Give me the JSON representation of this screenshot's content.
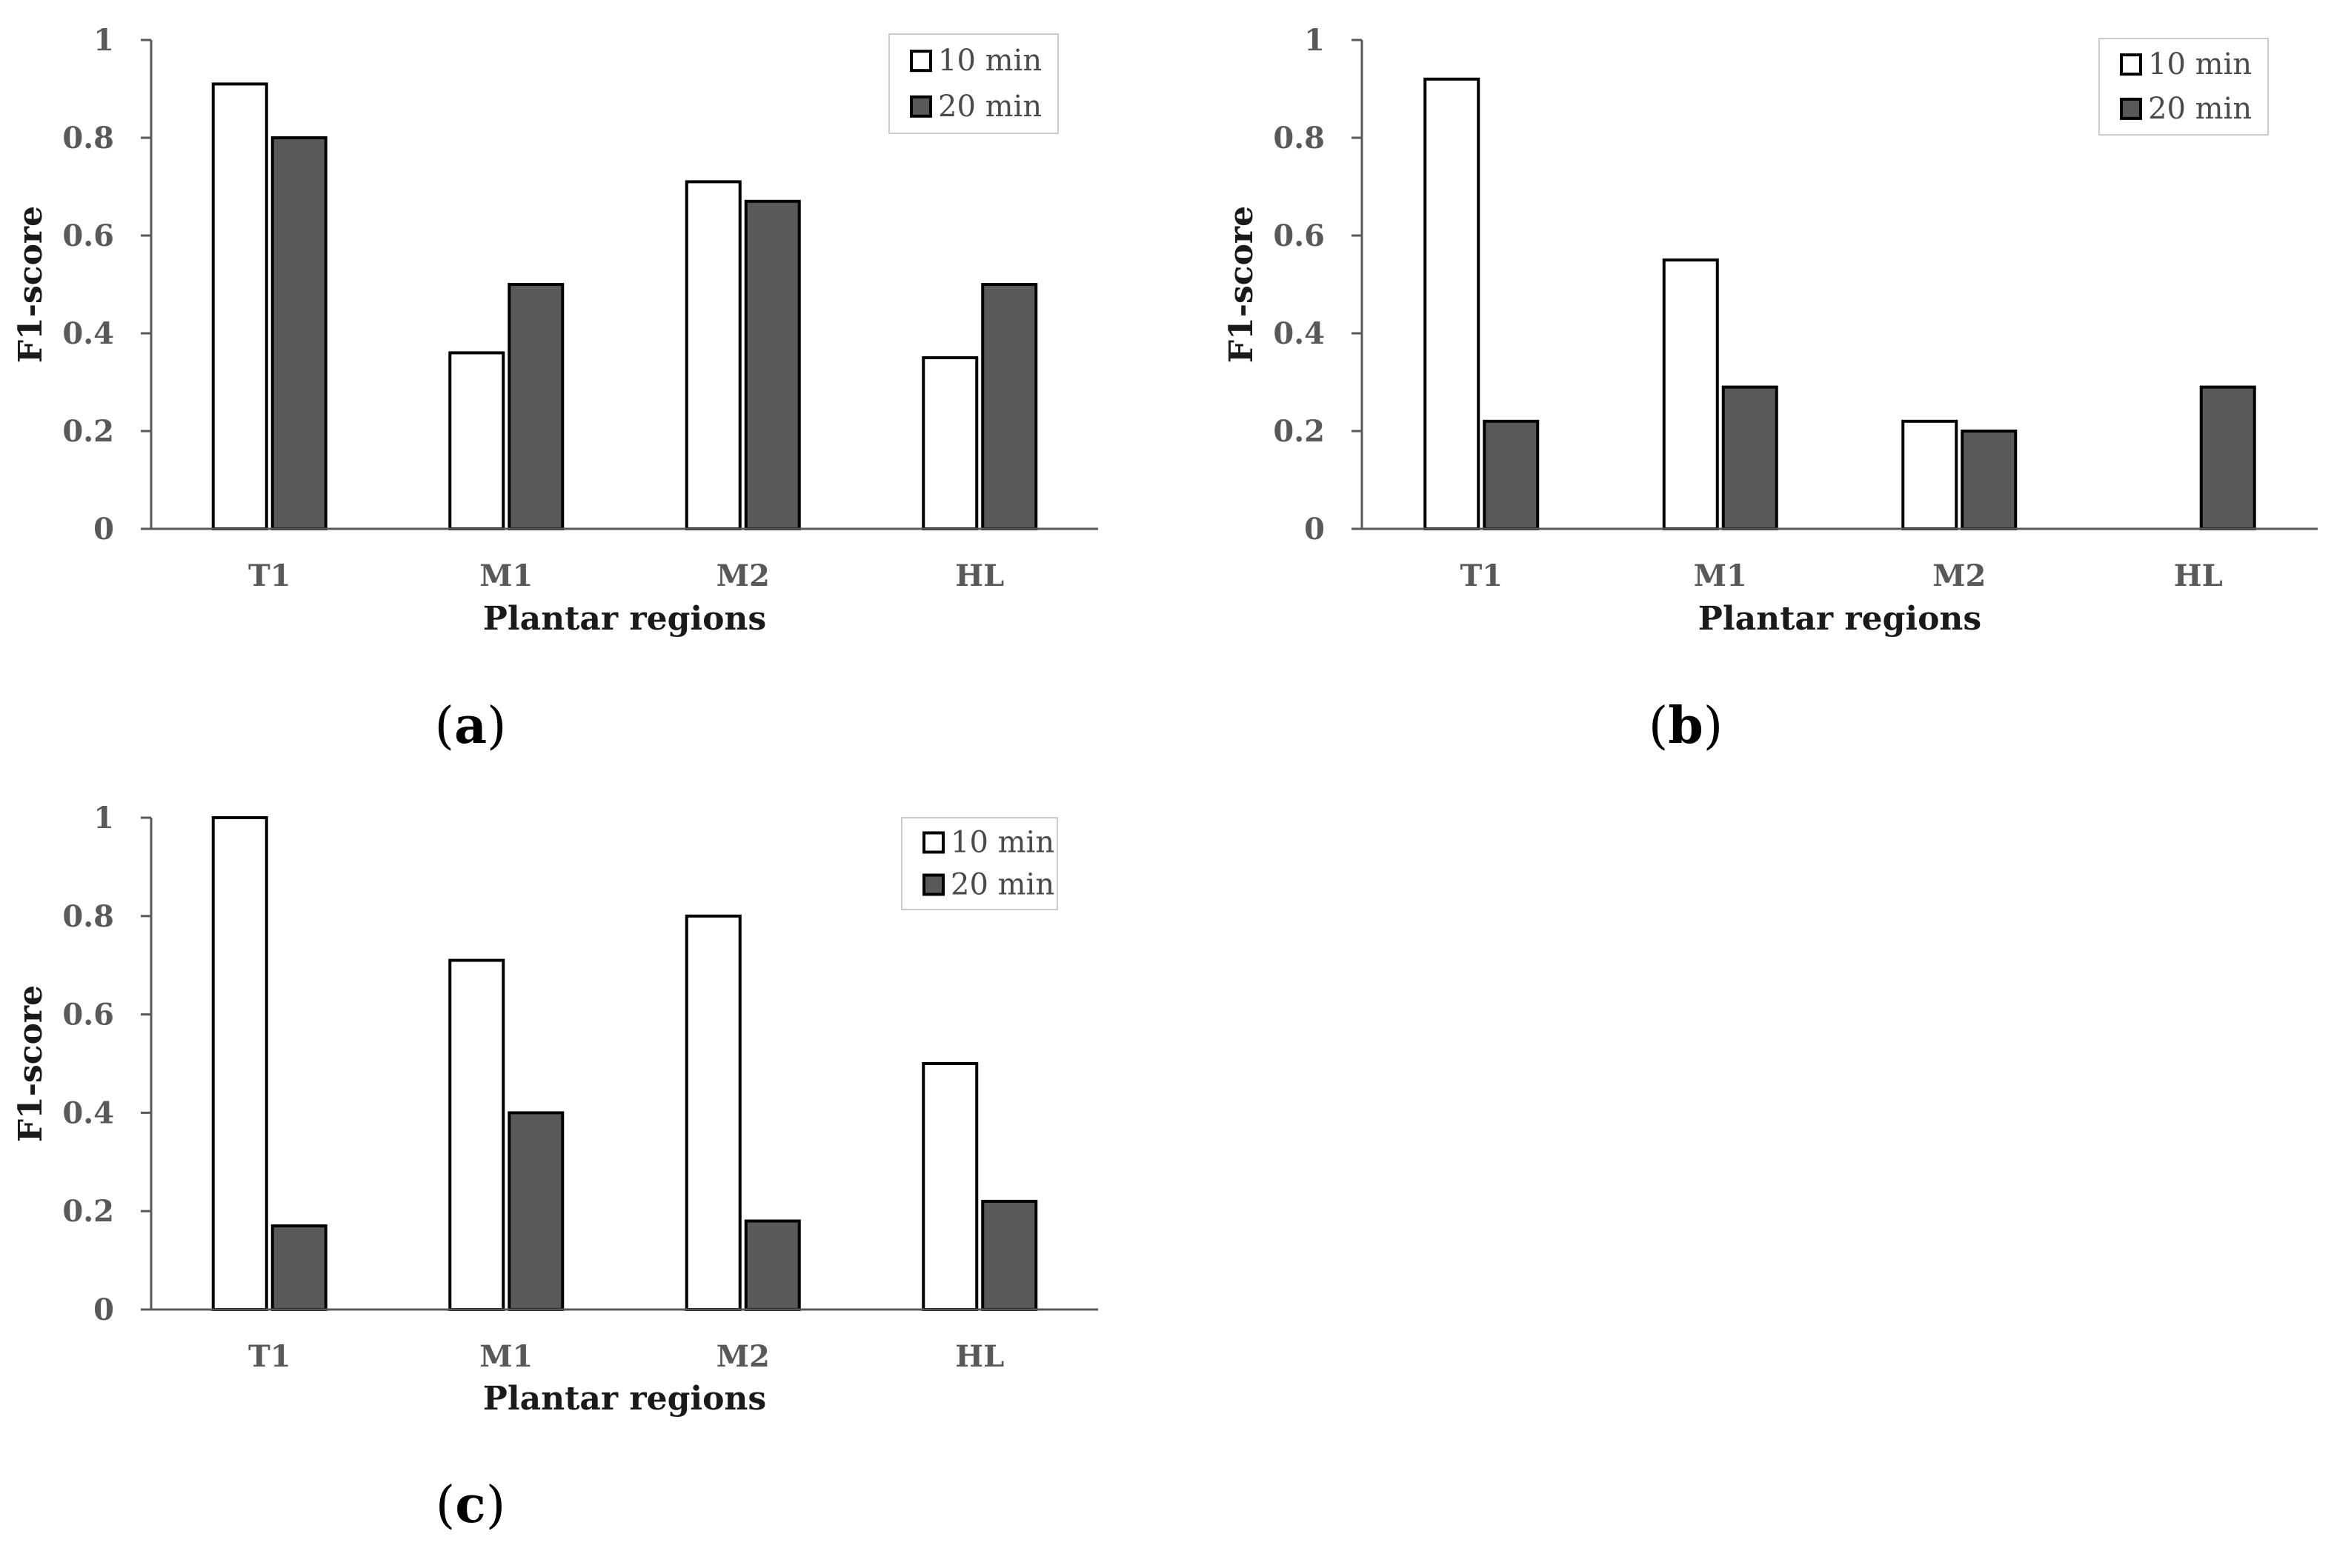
{
  "chart_data": [
    {
      "panel": "(a)",
      "panel_letter": "a",
      "type": "bar",
      "categories": [
        "T1",
        "M1",
        "M2",
        "HL"
      ],
      "series": [
        {
          "name": "10 min",
          "values": [
            0.91,
            0.36,
            0.71,
            0.35
          ],
          "fill": "#ffffff"
        },
        {
          "name": "20 min",
          "values": [
            0.8,
            0.5,
            0.67,
            0.5
          ],
          "fill": "#595959"
        }
      ],
      "xlabel": "Plantar regions",
      "ylabel": "F1-score",
      "ylim": [
        0,
        1
      ],
      "yticks": [
        "0",
        "0.2",
        "0.4",
        "0.6",
        "0.8",
        "1"
      ],
      "legend": "top-right",
      "grid": false
    },
    {
      "panel": "(b)",
      "panel_letter": "b",
      "type": "bar",
      "categories": [
        "T1",
        "M1",
        "M2",
        "HL"
      ],
      "series": [
        {
          "name": "10 min",
          "values": [
            0.92,
            0.55,
            0.22,
            0
          ],
          "fill": "#ffffff"
        },
        {
          "name": "20 min",
          "values": [
            0.22,
            0.29,
            0.2,
            0.29
          ],
          "fill": "#595959"
        }
      ],
      "xlabel": "Plantar regions",
      "ylabel": "F1-score",
      "ylim": [
        0,
        1
      ],
      "yticks": [
        "0",
        "0.2",
        "0.4",
        "0.6",
        "0.8",
        "1"
      ],
      "legend": "top-right",
      "grid": false
    },
    {
      "panel": "(c)",
      "panel_letter": "c",
      "type": "bar",
      "categories": [
        "T1",
        "M1",
        "M2",
        "HL"
      ],
      "series": [
        {
          "name": "10 min",
          "values": [
            1.0,
            0.71,
            0.8,
            0.5
          ],
          "fill": "#ffffff"
        },
        {
          "name": "20 min",
          "values": [
            0.17,
            0.4,
            0.18,
            0.22
          ],
          "fill": "#595959"
        }
      ],
      "xlabel": "Plantar regions",
      "ylabel": "F1-score",
      "ylim": [
        0,
        1
      ],
      "yticks": [
        "0",
        "0.2",
        "0.4",
        "0.6",
        "0.8",
        "1"
      ],
      "legend": "top-right",
      "grid": false
    }
  ],
  "colors": {
    "bar_outline": "#000000",
    "axis_line": "#595959",
    "legend_border": "#cccccc"
  }
}
